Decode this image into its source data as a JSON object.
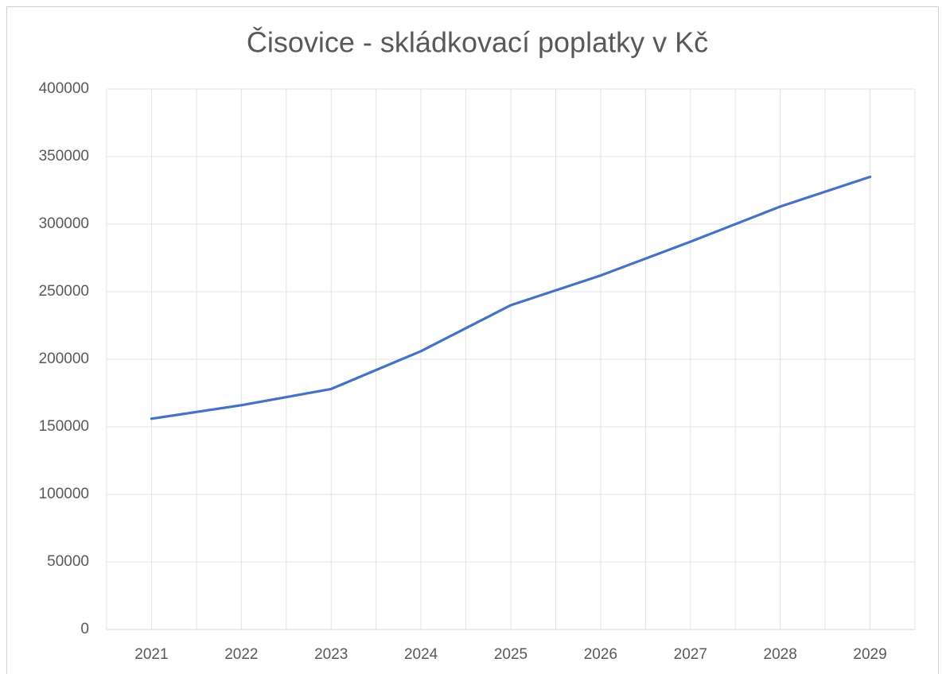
{
  "chart_data": {
    "type": "line",
    "title": "Čisovice - skládkovací poplatky v Kč",
    "categories": [
      "2021",
      "2022",
      "2023",
      "2024",
      "2025",
      "2026",
      "2027",
      "2028",
      "2029"
    ],
    "series": [
      {
        "name": "skládkovací poplatky",
        "color": "#4472c4",
        "values": [
          156000,
          166000,
          178000,
          206000,
          240000,
          262000,
          287000,
          313000,
          335000
        ]
      }
    ],
    "ylim": [
      0,
      400000
    ],
    "yticks": [
      0,
      50000,
      100000,
      150000,
      200000,
      250000,
      300000,
      350000,
      400000
    ],
    "grid": true,
    "legend": false
  }
}
